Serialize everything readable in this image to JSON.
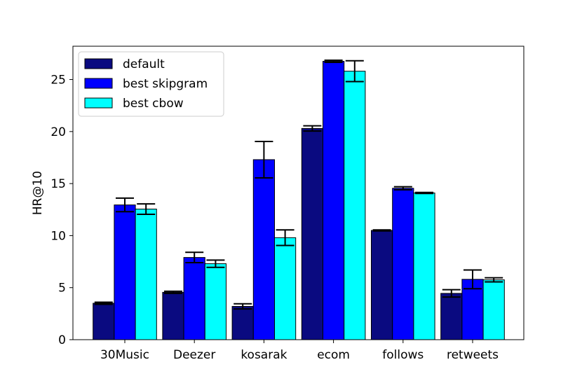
{
  "chart_data": {
    "type": "bar",
    "title": "",
    "xlabel": "",
    "ylabel": "HR@10",
    "ylim": [
      0,
      28.2
    ],
    "yticks": [
      0,
      5,
      10,
      15,
      20,
      25
    ],
    "categories": [
      "30Music",
      "Deezer",
      "kosarak",
      "ecom",
      "follows",
      "retweets"
    ],
    "series": [
      {
        "name": "default",
        "color": "#0a0a80",
        "values": [
          3.5,
          4.55,
          3.2,
          20.3,
          10.5,
          4.45
        ],
        "errors": [
          0.1,
          0.1,
          0.25,
          0.25,
          0.05,
          0.35
        ]
      },
      {
        "name": "best skipgram",
        "color": "#0000ff",
        "values": [
          12.95,
          7.9,
          17.3,
          26.75,
          14.55,
          5.8
        ],
        "errors": [
          0.65,
          0.5,
          1.75,
          0.1,
          0.15,
          0.9
        ]
      },
      {
        "name": "best cbow",
        "color": "#00ffff",
        "values": [
          12.55,
          7.3,
          9.8,
          25.8,
          14.1,
          5.75
        ],
        "errors": [
          0.5,
          0.35,
          0.75,
          1.0,
          0.05,
          0.2
        ]
      }
    ],
    "legend_position": "top-left",
    "grid": false
  }
}
